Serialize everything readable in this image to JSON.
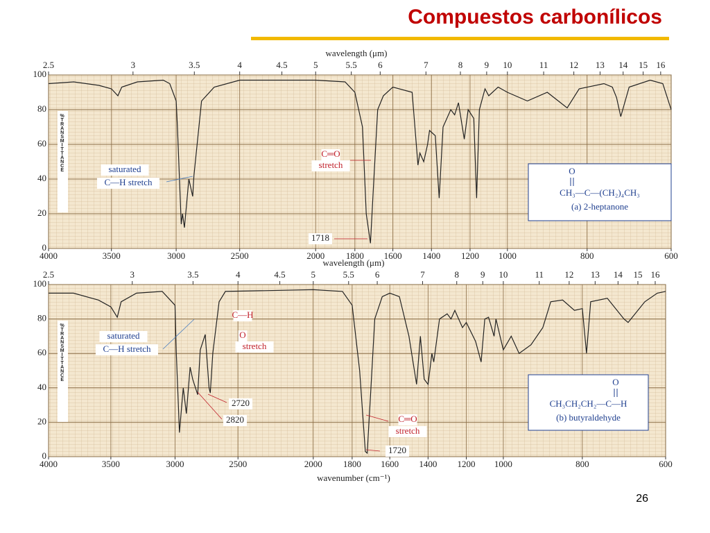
{
  "slide": {
    "title": "Compuestos carbonílicos",
    "page": "26"
  },
  "chart_data": [
    {
      "type": "line",
      "color": "#222222",
      "x": [
        4000,
        3800,
        3600,
        3500,
        3450,
        3420,
        3300,
        3100,
        3050,
        3000,
        2990,
        2960,
        2950,
        2935,
        2900,
        2870,
        2860,
        2800,
        2700,
        2500,
        2000,
        1850,
        1800,
        1760,
        1740,
        1718,
        1700,
        1680,
        1650,
        1600,
        1500,
        1470,
        1460,
        1440,
        1420,
        1410,
        1380,
        1360,
        1340,
        1300,
        1280,
        1260,
        1230,
        1210,
        1180,
        1165,
        1150,
        1120,
        1100,
        1050,
        1000,
        950,
        900,
        850,
        820,
        760,
        740,
        730,
        720,
        700,
        650,
        620,
        600
      ],
      "values": [
        95,
        96,
        94,
        92,
        88,
        93,
        96,
        97,
        95,
        85,
        70,
        14,
        20,
        12,
        40,
        30,
        42,
        85,
        93,
        97,
        97,
        96,
        90,
        70,
        20,
        3,
        40,
        80,
        88,
        93,
        90,
        48,
        55,
        50,
        60,
        68,
        65,
        29,
        70,
        80,
        77,
        84,
        63,
        80,
        75,
        29,
        80,
        92,
        88,
        93,
        90,
        85,
        90,
        81,
        92,
        95,
        93,
        87,
        76,
        93,
        97,
        95,
        80
      ],
      "xlim": [
        4000,
        600
      ],
      "xticks": [
        4000,
        3500,
        3000,
        2500,
        2000,
        1800,
        1600,
        1400,
        1200,
        1000,
        800,
        600
      ],
      "x2label": "wavelength (μm)",
      "x2ticks": [
        2.5,
        3,
        3.5,
        4,
        4.5,
        5,
        5.5,
        6,
        7,
        8,
        9,
        10,
        11,
        12,
        13,
        14,
        15,
        16
      ],
      "ylabel": "%TRANSMITTANCE",
      "ylim": [
        0,
        100
      ],
      "yticks": [
        0,
        20,
        40,
        60,
        80,
        100
      ],
      "grid": true,
      "annotations": [
        "saturated",
        "C—H  stretch",
        "C═O",
        "stretch",
        "1718"
      ],
      "formula": {
        "top": "O",
        "main": "CH₃—C—(CH₂)₄CH₃",
        "caption": "(a) 2-heptanone"
      }
    },
    {
      "type": "line",
      "color": "#222222",
      "x": [
        4000,
        3800,
        3600,
        3500,
        3450,
        3420,
        3300,
        3100,
        3000,
        2990,
        2965,
        2935,
        2910,
        2880,
        2860,
        2820,
        2800,
        2760,
        2730,
        2720,
        2700,
        2650,
        2600,
        2000,
        1850,
        1800,
        1760,
        1730,
        1720,
        1700,
        1680,
        1640,
        1600,
        1550,
        1500,
        1460,
        1440,
        1420,
        1400,
        1380,
        1370,
        1340,
        1300,
        1280,
        1260,
        1220,
        1200,
        1150,
        1120,
        1100,
        1080,
        1050,
        1040,
        1000,
        980,
        960,
        930,
        900,
        880,
        850,
        820,
        800,
        790,
        780,
        740,
        700,
        690,
        650,
        620,
        600
      ],
      "values": [
        95,
        95,
        91,
        87,
        81,
        90,
        95,
        96,
        88,
        60,
        14,
        40,
        25,
        52,
        45,
        36,
        62,
        71,
        40,
        37,
        60,
        90,
        96,
        97,
        96,
        88,
        50,
        3,
        2,
        40,
        80,
        93,
        95,
        93,
        70,
        42,
        70,
        45,
        42,
        60,
        55,
        80,
        83,
        80,
        85,
        75,
        78,
        67,
        55,
        80,
        81,
        70,
        80,
        62,
        70,
        60,
        65,
        75,
        90,
        91,
        85,
        86,
        60,
        90,
        92,
        80,
        78,
        90,
        95,
        96
      ],
      "xlim": [
        4000,
        600
      ],
      "xticks": [
        4000,
        3500,
        3000,
        2500,
        2000,
        1800,
        1600,
        1400,
        1200,
        1000,
        800,
        600
      ],
      "xlabel": "wavenumber (cm⁻¹)",
      "x2label": "wavelength (μm)",
      "x2ticks": [
        2.5,
        3,
        3.5,
        4,
        4.5,
        5,
        5.5,
        6,
        7,
        8,
        9,
        10,
        11,
        12,
        13,
        14,
        15,
        16
      ],
      "ylabel": "%TRANSMITTANCE",
      "ylim": [
        0,
        100
      ],
      "yticks": [
        0,
        20,
        40,
        60,
        80,
        100
      ],
      "grid": true,
      "annotations": [
        "saturated",
        "C—H  stretch",
        "C—H",
        "O",
        "stretch",
        "2720",
        "2820",
        "C═O",
        "stretch",
        "1720"
      ],
      "formula": {
        "top": "O",
        "main": "CH₃CH₂CH₂—C—H",
        "caption": "(b) butyraldehyde"
      }
    }
  ]
}
